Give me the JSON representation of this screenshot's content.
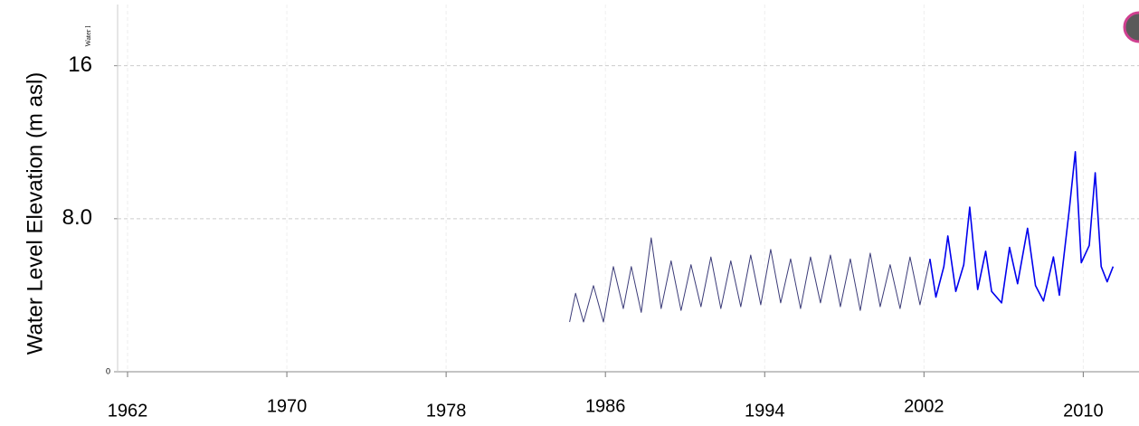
{
  "chart_data": {
    "type": "line",
    "y_label": "Water Level Elevation (m asl)",
    "annotation": "Water l",
    "xlim": [
      1961.5,
      2012.8
    ],
    "xticks": [
      1962,
      1970,
      1978,
      1986,
      1994,
      2002,
      2010
    ],
    "ylim": [
      0,
      19.2
    ],
    "yticks": [
      0,
      {
        "value": 8,
        "label": "8.0"
      },
      16
    ],
    "grid": true,
    "series": [
      {
        "name": null,
        "color": "#3b3b78",
        "x": [
          1984.2,
          1984.5,
          1984.9,
          1985.4,
          1985.9,
          1986.4,
          1986.9,
          1987.3,
          1987.8,
          1988.3,
          1988.8,
          1989.3,
          1989.8,
          1990.3,
          1990.8,
          1991.3,
          1991.8,
          1992.3,
          1992.8,
          1993.3,
          1993.8,
          1994.3,
          1994.8,
          1995.3,
          1995.8,
          1996.3,
          1996.8,
          1997.3,
          1997.8,
          1998.3,
          1998.8,
          1999.3,
          1999.8,
          2000.3,
          2000.8,
          2001.3,
          2001.8,
          2002.3
        ],
        "values": [
          2.6,
          4.1,
          2.6,
          4.5,
          2.6,
          5.5,
          3.3,
          5.5,
          3.1,
          7.0,
          3.3,
          5.8,
          3.2,
          5.6,
          3.4,
          6.0,
          3.3,
          5.8,
          3.4,
          6.1,
          3.5,
          6.4,
          3.6,
          5.9,
          3.3,
          6.0,
          3.6,
          6.1,
          3.4,
          5.9,
          3.2,
          6.2,
          3.4,
          5.6,
          3.3,
          6.0,
          3.5,
          5.9
        ]
      },
      {
        "name": null,
        "color": "#0000ee",
        "x": [
          2002.3,
          2002.6,
          2003.0,
          2003.2,
          2003.6,
          2004.0,
          2004.3,
          2004.7,
          2005.1,
          2005.4,
          2005.9,
          2006.3,
          2006.7,
          2007.2,
          2007.6,
          2008.0,
          2008.5,
          2008.8,
          2009.3,
          2009.6,
          2009.9,
          2010.3,
          2010.6,
          2010.9,
          2011.2,
          2011.5
        ],
        "values": [
          5.9,
          3.9,
          5.5,
          7.1,
          4.2,
          5.6,
          8.6,
          4.3,
          6.3,
          4.2,
          3.6,
          6.5,
          4.6,
          7.5,
          4.5,
          3.7,
          6.0,
          4.0,
          8.5,
          11.5,
          5.7,
          6.6,
          10.4,
          5.5,
          4.7,
          5.5
        ]
      }
    ]
  }
}
